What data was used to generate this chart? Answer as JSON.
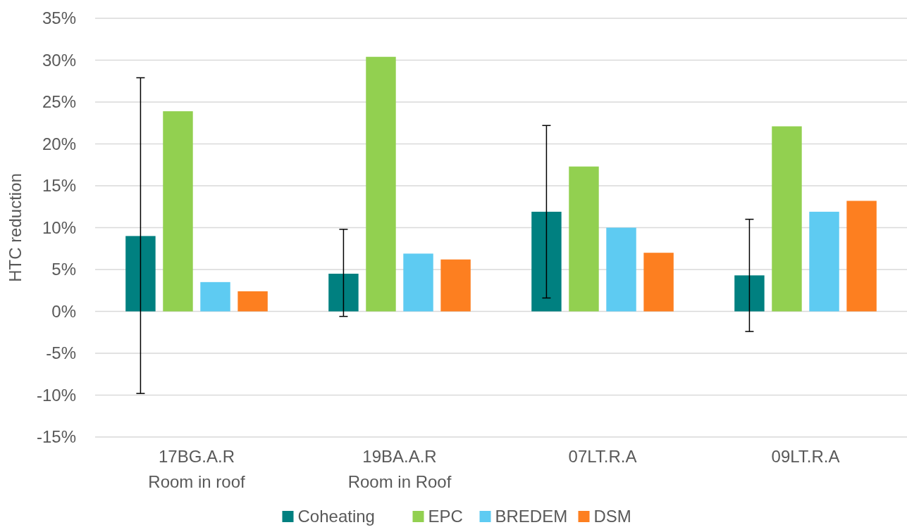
{
  "chart_data": {
    "type": "bar",
    "ylabel": "HTC reduction",
    "categories": [
      "17BG.A.R\nRoom in roof",
      "19BA.A.R\nRoom in Roof",
      "07LT.R.A",
      "09LT.R.A"
    ],
    "series": [
      {
        "name": "Coheating",
        "color": "#008080",
        "values": [
          9.0,
          4.5,
          11.9,
          4.3
        ],
        "errors": [
          [
            -9.8,
            27.9
          ],
          [
            -0.6,
            9.8
          ],
          [
            1.6,
            22.2
          ],
          [
            -2.4,
            11.0
          ]
        ]
      },
      {
        "name": "EPC",
        "color": "#92d050",
        "values": [
          23.9,
          30.4,
          17.3,
          22.1
        ]
      },
      {
        "name": "BREDEM",
        "color": "#5ecbf2",
        "values": [
          3.5,
          6.9,
          10.0,
          11.9
        ]
      },
      {
        "name": "DSM",
        "color": "#fd7f20",
        "values": [
          2.4,
          6.2,
          7.0,
          13.2
        ]
      }
    ],
    "ylim": [
      -15,
      35
    ],
    "yticks": [
      {
        "value": -15,
        "label": "-15%"
      },
      {
        "value": -10,
        "label": "-10%"
      },
      {
        "value": -5,
        "label": "-5%"
      },
      {
        "value": 0,
        "label": "0%"
      },
      {
        "value": 5,
        "label": "5%"
      },
      {
        "value": 10,
        "label": "10%"
      },
      {
        "value": 15,
        "label": "15%"
      },
      {
        "value": 20,
        "label": "20%"
      },
      {
        "value": 25,
        "label": "25%"
      },
      {
        "value": 30,
        "label": "30%"
      },
      {
        "value": 35,
        "label": "35%"
      }
    ],
    "grid": "y",
    "legend": "bottom"
  }
}
